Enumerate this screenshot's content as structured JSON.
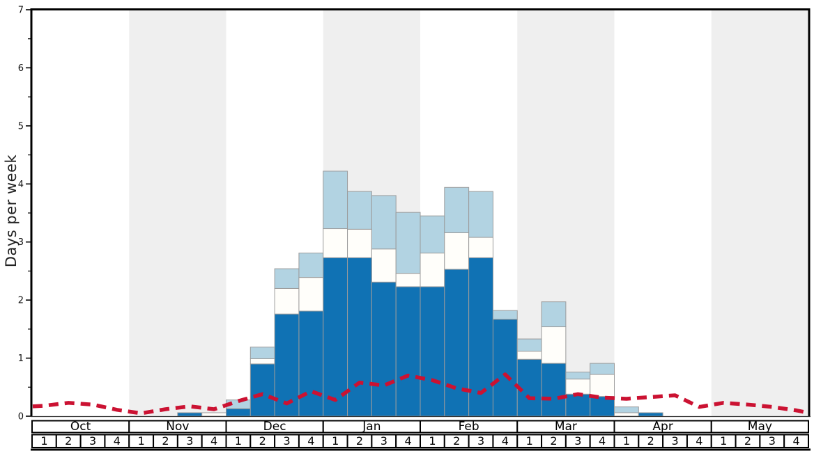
{
  "chart_data": {
    "type": "bar",
    "subtype": "stacked-bars-with-dashed-line",
    "title": "",
    "ylabel": "Days per week",
    "months": [
      "Oct",
      "Nov",
      "Dec",
      "Jan",
      "Feb",
      "Mar",
      "Apr",
      "May"
    ],
    "weeks": [
      "1",
      "2",
      "3",
      "4"
    ],
    "categories": [
      "Oct w1",
      "Oct w2",
      "Oct w3",
      "Oct w4",
      "Nov w1",
      "Nov w2",
      "Nov w3",
      "Nov w4",
      "Dec w1",
      "Dec w2",
      "Dec w3",
      "Dec w4",
      "Jan w1",
      "Jan w2",
      "Jan w3",
      "Jan w4",
      "Feb w1",
      "Feb w2",
      "Feb w3",
      "Feb w4",
      "Mar w1",
      "Mar w2",
      "Mar w3",
      "Mar w4",
      "Apr w1",
      "Apr w2",
      "Apr w3",
      "Apr w4",
      "May w1",
      "May w2",
      "May w3",
      "May w4"
    ],
    "y_axis": {
      "min": 0,
      "max": 7,
      "major_step": 1,
      "minor_step": 0.5
    },
    "shaded_month_indices": [
      1,
      3,
      5,
      7
    ],
    "note": "Stacked bar values are cumulative stack tops in days-per-week: dark blue segment = 0 to dark_blue_top, white segment = dark_blue_top to white_top, light blue segment = white_top to light_blue_top.",
    "stacked_bars": {
      "dark_blue_top": [
        0,
        0,
        0,
        0,
        0,
        0,
        0.06,
        0,
        0.13,
        0.9,
        1.76,
        1.81,
        2.73,
        2.73,
        2.31,
        2.23,
        2.23,
        2.53,
        2.73,
        1.67,
        0.98,
        0.91,
        0.38,
        0.34,
        0,
        0.06,
        0,
        0,
        0,
        0,
        0,
        0
      ],
      "white_top": [
        0,
        0,
        0,
        0,
        0,
        0,
        0.06,
        0.06,
        0.13,
        0.99,
        2.2,
        2.39,
        3.23,
        3.22,
        2.88,
        2.46,
        2.81,
        3.16,
        3.08,
        1.67,
        1.12,
        1.54,
        0.64,
        0.72,
        0.06,
        0.06,
        0,
        0,
        0,
        0,
        0,
        0
      ],
      "light_blue_top": [
        0,
        0,
        0,
        0,
        0,
        0,
        0.06,
        0.06,
        0.28,
        1.19,
        2.54,
        2.81,
        4.22,
        3.87,
        3.8,
        3.51,
        3.45,
        3.94,
        3.87,
        1.82,
        1.33,
        1.97,
        0.76,
        0.91,
        0.16,
        0.06,
        0,
        0,
        0,
        0,
        0,
        0
      ]
    },
    "rain_line": {
      "name": "red-dashed-line",
      "edge_start": 0.17,
      "values": [
        0.18,
        0.23,
        0.2,
        0.11,
        0.05,
        0.12,
        0.17,
        0.12,
        0.26,
        0.38,
        0.22,
        0.43,
        0.28,
        0.58,
        0.53,
        0.7,
        0.62,
        0.48,
        0.4,
        0.72,
        0.31,
        0.3,
        0.38,
        0.32,
        0.3,
        0.33,
        0.36,
        0.16,
        0.23,
        0.2,
        0.16,
        0.1
      ],
      "edge_end": 0.06
    },
    "colors": {
      "dark_blue": "#1072b4",
      "white_segment": "#fffefa",
      "light_blue": "#b2d3e2",
      "rain_red": "#cb1232",
      "shade": "#efefef",
      "bar_outline": "#9b9b9b",
      "frame": "#000000",
      "text": "#111111"
    },
    "legend": "none visible",
    "grid": "off"
  }
}
